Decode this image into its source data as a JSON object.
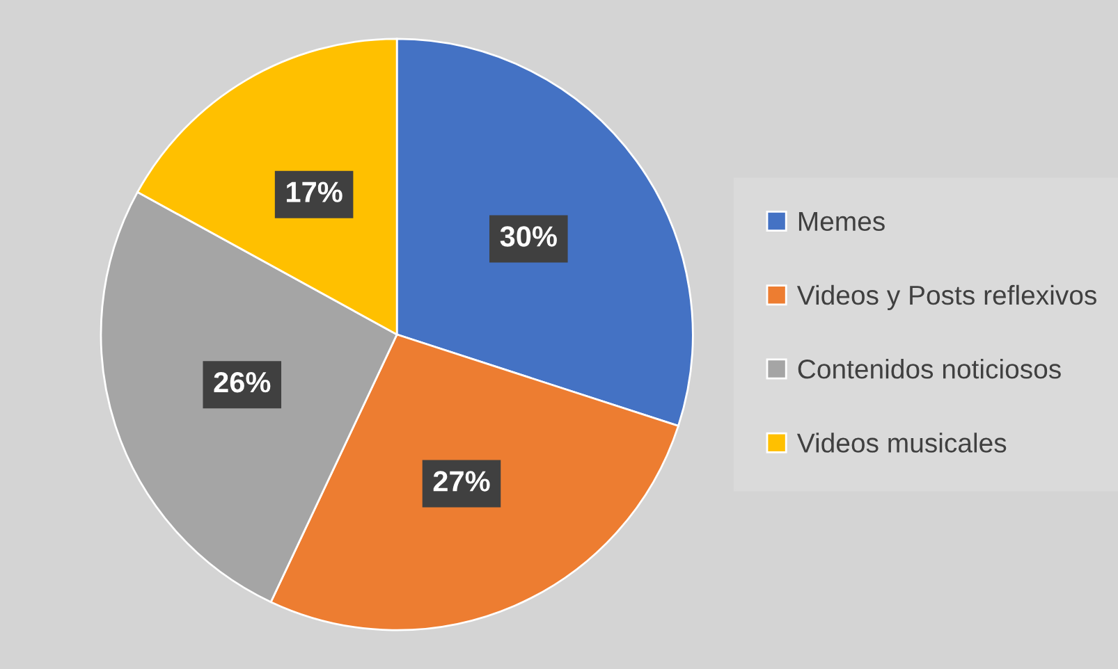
{
  "chart_data": {
    "type": "pie",
    "categories": [
      "Memes",
      "Videos y Posts reflexivos",
      "Contenidos noticiosos",
      "Videos musicales"
    ],
    "values": [
      30,
      27,
      26,
      17
    ],
    "colors": [
      "#4472c4",
      "#ed7d31",
      "#a5a5a5",
      "#ffc000"
    ],
    "value_labels": [
      "30%",
      "27%",
      "26%",
      "17%"
    ],
    "legend": "right"
  }
}
